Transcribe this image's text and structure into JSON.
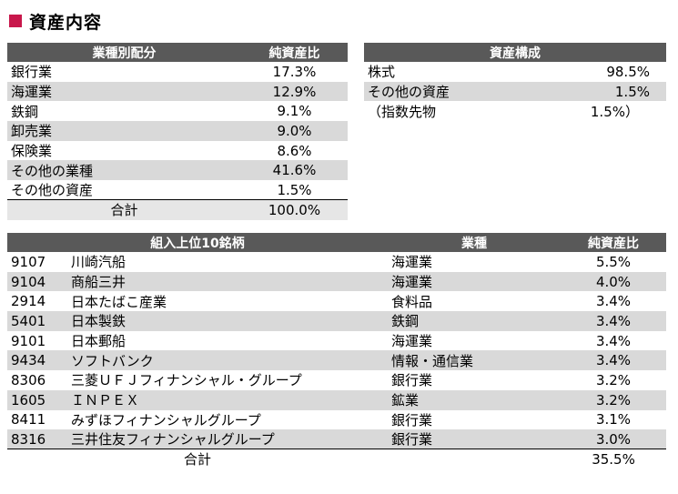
{
  "title": "資産内容",
  "sector_table": {
    "header": [
      "業種別配分",
      "純資産比"
    ],
    "rows": [
      {
        "name": "銀行業",
        "pct": "17.3%"
      },
      {
        "name": "海運業",
        "pct": "12.9%"
      },
      {
        "name": "鉄鋼",
        "pct": "9.1%"
      },
      {
        "name": "卸売業",
        "pct": "9.0%"
      },
      {
        "name": "保険業",
        "pct": "8.6%"
      },
      {
        "name": "その他の業種",
        "pct": "41.6%"
      },
      {
        "name": "その他の資産",
        "pct": "1.5%"
      }
    ],
    "total": {
      "label": "合計",
      "pct": "100.0%"
    }
  },
  "composition_table": {
    "header": "資産構成",
    "rows": [
      {
        "name": "株式",
        "pct": "98.5%"
      },
      {
        "name": "その他の資産",
        "pct": "1.5%"
      },
      {
        "name": "（指数先物",
        "pct": "1.5%）"
      }
    ]
  },
  "top10_table": {
    "header": [
      "組入上位10銘柄",
      "業種",
      "純資産比"
    ],
    "rows": [
      {
        "code": "9107",
        "name": "川崎汽船",
        "sector": "海運業",
        "pct": "5.5%"
      },
      {
        "code": "9104",
        "name": "商船三井",
        "sector": "海運業",
        "pct": "4.0%"
      },
      {
        "code": "2914",
        "name": "日本たばこ産業",
        "sector": "食料品",
        "pct": "3.4%"
      },
      {
        "code": "5401",
        "name": "日本製鉄",
        "sector": "鉄鋼",
        "pct": "3.4%"
      },
      {
        "code": "9101",
        "name": "日本郵船",
        "sector": "海運業",
        "pct": "3.4%"
      },
      {
        "code": "9434",
        "name": "ソフトバンク",
        "sector": "情報・通信業",
        "pct": "3.4%"
      },
      {
        "code": "8306",
        "name": "三菱ＵＦＪフィナンシャル・グループ",
        "sector": "銀行業",
        "pct": "3.2%"
      },
      {
        "code": "1605",
        "name": "ＩＮＰＥＸ",
        "sector": "鉱業",
        "pct": "3.2%"
      },
      {
        "code": "8411",
        "name": "みずほフィナンシャルグループ",
        "sector": "銀行業",
        "pct": "3.1%"
      },
      {
        "code": "8316",
        "name": "三井住友フィナンシャルグループ",
        "sector": "銀行業",
        "pct": "3.0%"
      }
    ],
    "total": {
      "label": "合計",
      "pct": "35.5%"
    }
  }
}
